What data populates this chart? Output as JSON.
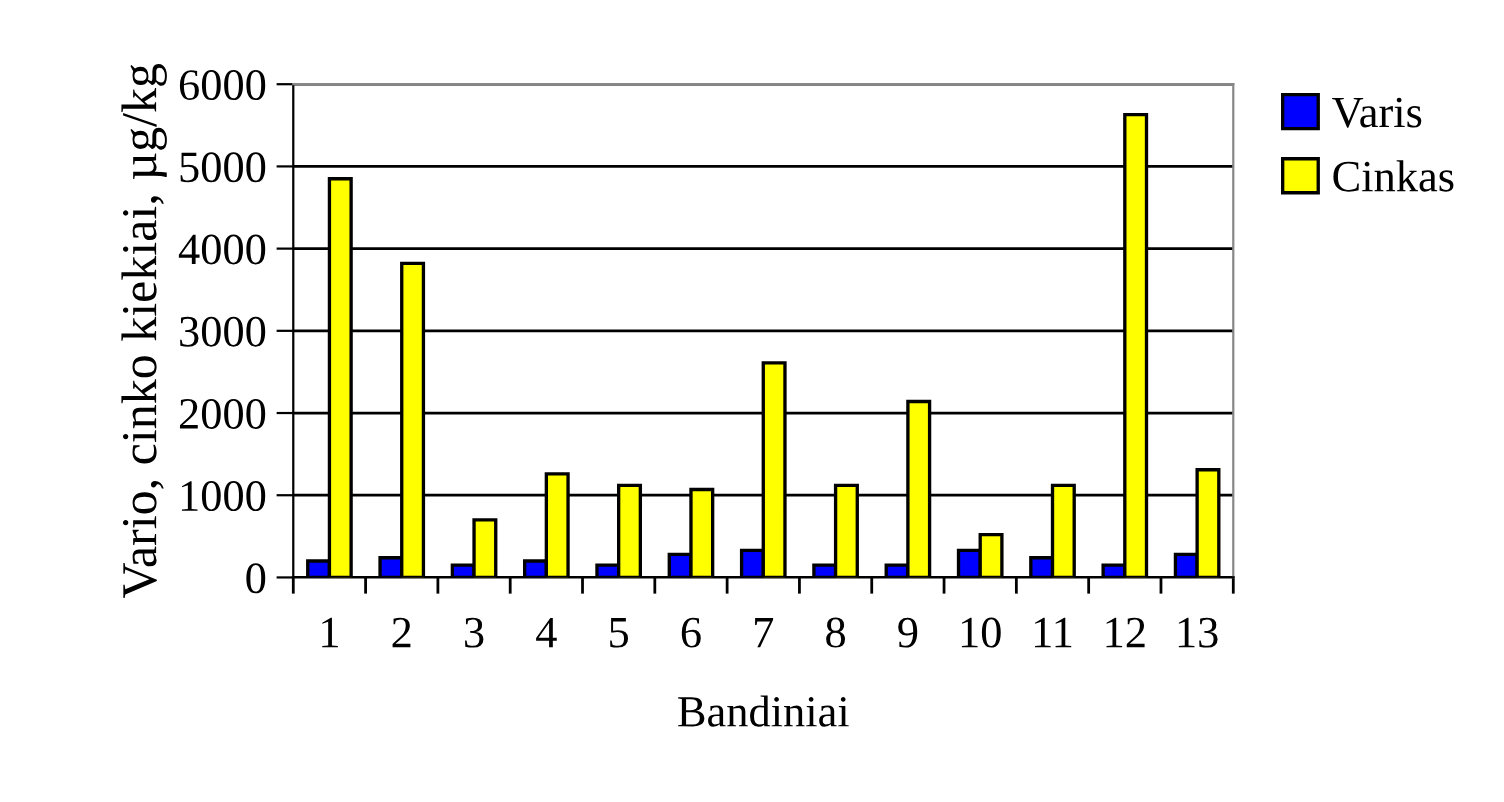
{
  "chart_data": {
    "type": "bar",
    "xlabel": "Bandiniai",
    "ylabel": "Vario, cinko kiekiai, µg/kg",
    "categories": [
      "1",
      "2",
      "3",
      "4",
      "5",
      "6",
      "7",
      "8",
      "9",
      "10",
      "11",
      "12",
      "13"
    ],
    "series": [
      {
        "name": "Varis",
        "color": "#0000ff",
        "values": [
          200,
          240,
          150,
          200,
          150,
          280,
          330,
          150,
          150,
          330,
          240,
          150,
          280
        ]
      },
      {
        "name": "Cinkas",
        "color": "#ffff00",
        "values": [
          4850,
          3820,
          700,
          1260,
          1120,
          1070,
          2610,
          1120,
          2140,
          520,
          1120,
          5630,
          1310
        ]
      }
    ],
    "ylim": [
      0,
      6000
    ],
    "yticks": [
      0,
      1000,
      2000,
      3000,
      4000,
      5000,
      6000
    ],
    "grid": "y",
    "legend": "right"
  }
}
